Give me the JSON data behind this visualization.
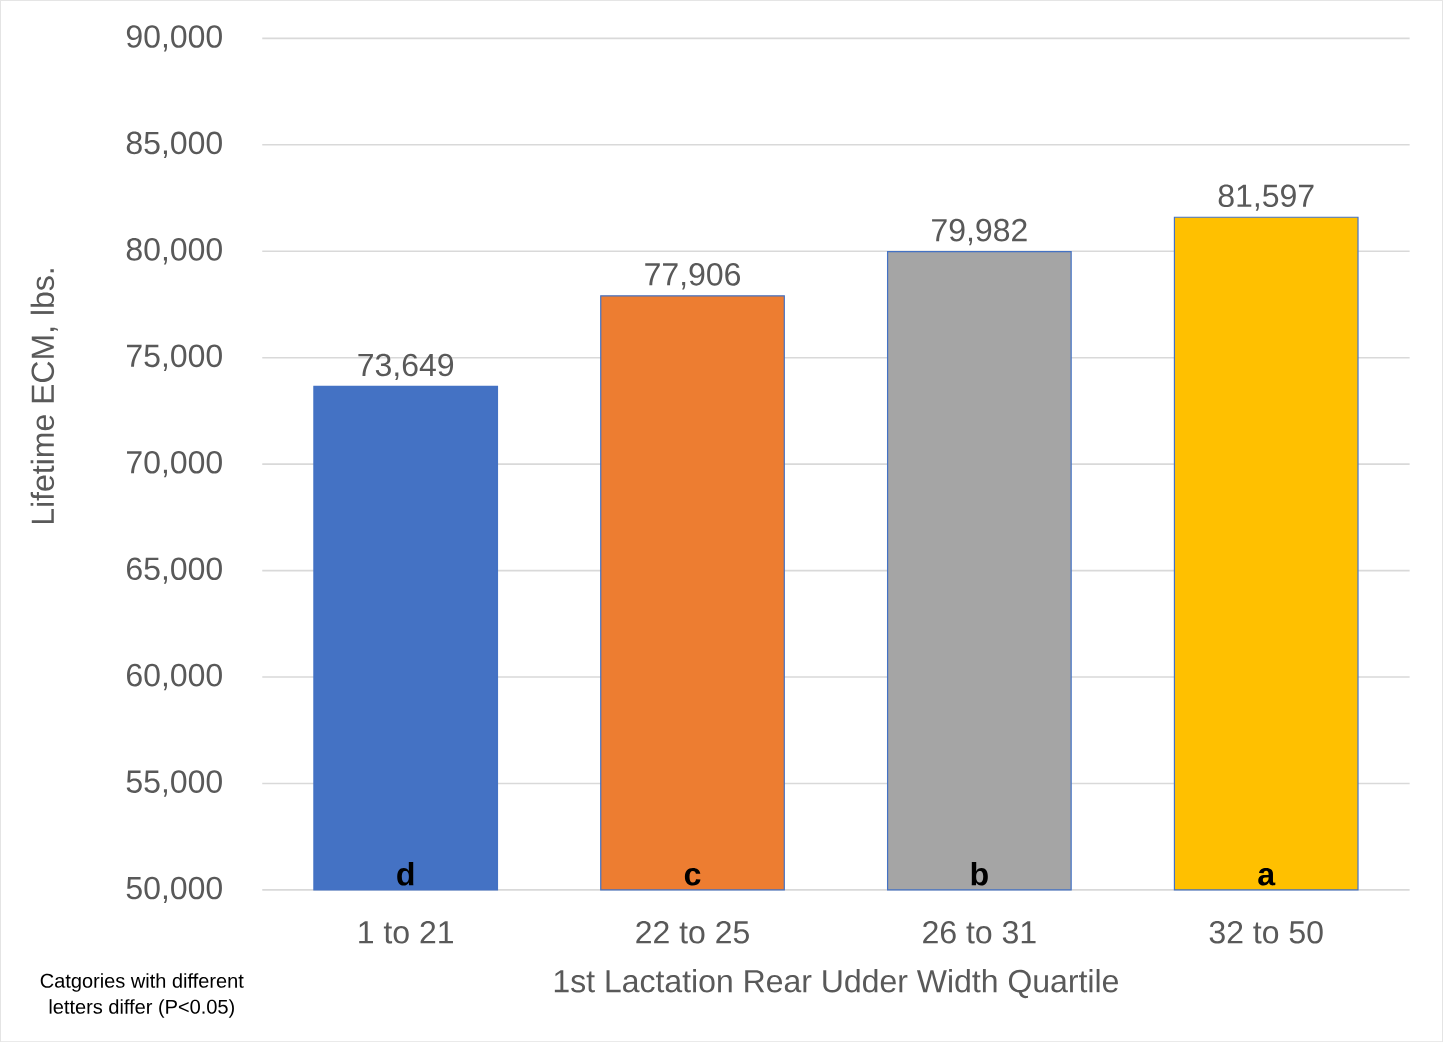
{
  "chart_data": {
    "type": "bar",
    "categories": [
      "1 to 21",
      "22 to 25",
      "26 to 31",
      "32 to 50"
    ],
    "values": [
      73649,
      77906,
      79982,
      81597
    ],
    "value_labels": [
      "73,649",
      "77,906",
      "79,982",
      "81,597"
    ],
    "colors": [
      "#4472c4",
      "#ed7d31",
      "#a5a5a5",
      "#ffc000"
    ],
    "xlabel": "1st Lactation Rear Udder Width Quartile",
    "ylabel": "Lifetime ECM, lbs.",
    "ylim": [
      50000,
      90000
    ],
    "yticks": [
      {
        "value": 50000,
        "label": "50,000"
      },
      {
        "value": 55000,
        "label": "55,000"
      },
      {
        "value": 60000,
        "label": "60,000"
      },
      {
        "value": 65000,
        "label": "65,000"
      },
      {
        "value": 70000,
        "label": "70,000"
      },
      {
        "value": 75000,
        "label": "75,000"
      },
      {
        "value": 80000,
        "label": "80,000"
      },
      {
        "value": 85000,
        "label": "85,000"
      },
      {
        "value": 90000,
        "label": "90,000"
      }
    ],
    "grid": "y",
    "annotations": [
      "d",
      "c",
      "b",
      "a",
      "Catgories with different letters differ (P<0.05)"
    ]
  }
}
